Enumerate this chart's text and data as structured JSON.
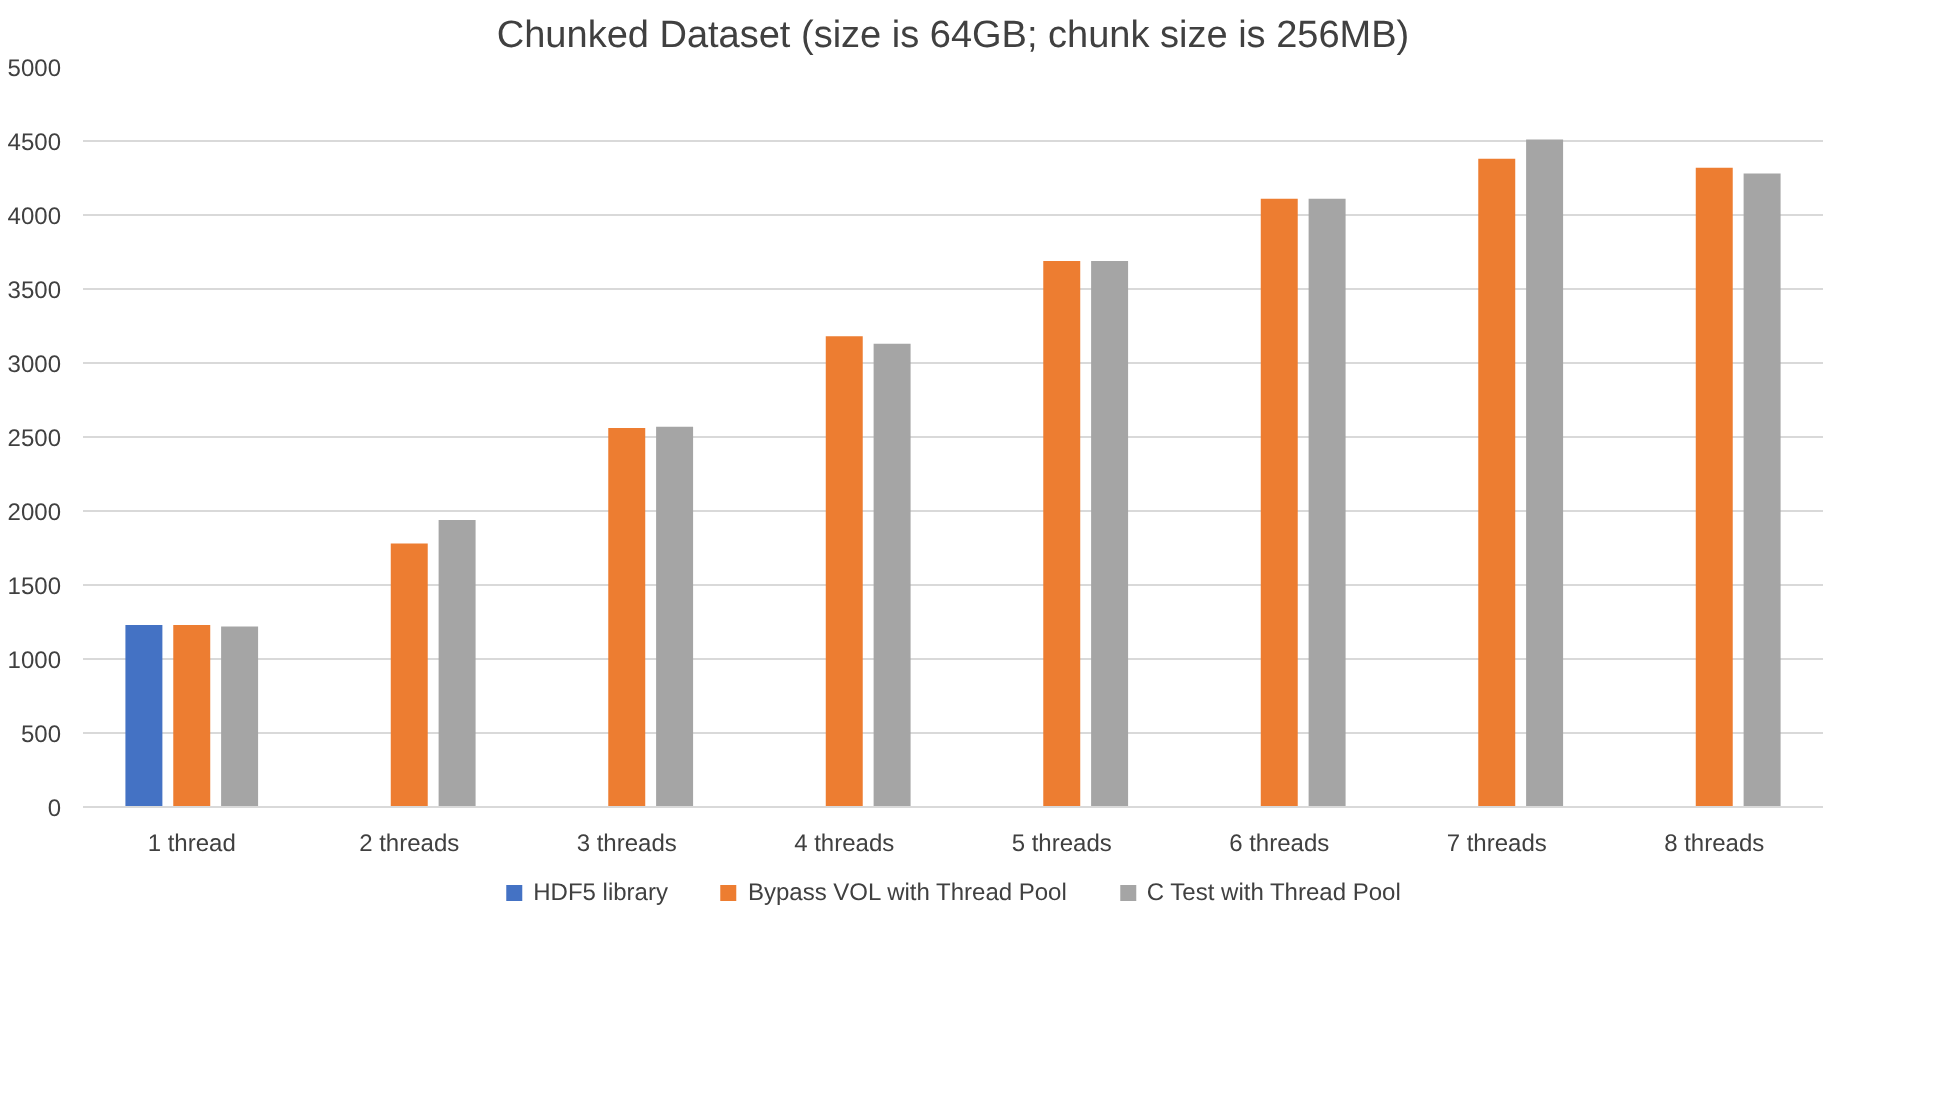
{
  "chart_data": {
    "type": "bar",
    "title": "Chunked Dataset (size is 64GB; chunk size is 256MB)",
    "categories": [
      "1 thread",
      "2 threads",
      "3 threads",
      "4 threads",
      "5 threads",
      "6 threads",
      "7 threads",
      "8 threads"
    ],
    "series": [
      {
        "name": "HDF5 library",
        "color": "#4472c4",
        "values": [
          1230,
          null,
          null,
          null,
          null,
          null,
          null,
          null
        ]
      },
      {
        "name": "Bypass VOL with Thread Pool",
        "color": "#ed7d31",
        "values": [
          1230,
          1780,
          2560,
          3180,
          3690,
          4110,
          4380,
          4320
        ]
      },
      {
        "name": "C Test with Thread Pool",
        "color": "#a5a5a5",
        "values": [
          1220,
          1940,
          2570,
          3130,
          3690,
          4110,
          4510,
          4280
        ]
      }
    ],
    "ylim": [
      0,
      5000
    ],
    "yticks": [
      0,
      500,
      1000,
      1500,
      2000,
      2500,
      3000,
      3500,
      4000,
      4500,
      5000
    ],
    "grid": "y",
    "legend": "bottom"
  }
}
